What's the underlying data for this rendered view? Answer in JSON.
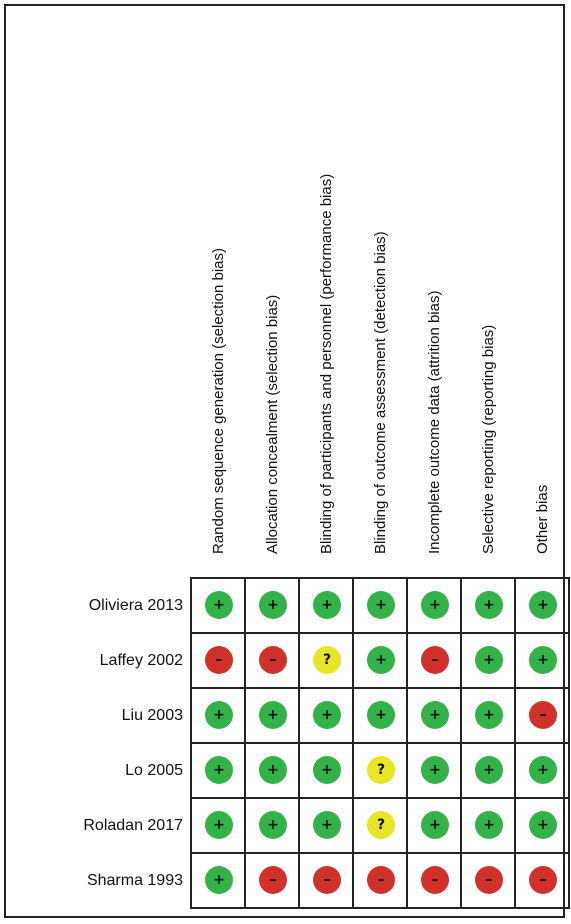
{
  "columns": [
    "Random sequence generation (selection bias)",
    "Allocation concealment (selection bias)",
    "Blinding of participants and personnel (performance bias)",
    "Blinding of outcome assessment (detection bias)",
    "Incomplete outcome data (attrition bias)",
    "Selective reporting (reporting bias)",
    "Other bias"
  ],
  "rows": [
    {
      "study": "Oliviera 2013",
      "ratings": [
        "low",
        "low",
        "low",
        "low",
        "low",
        "low",
        "low"
      ]
    },
    {
      "study": "Laffey 2002",
      "ratings": [
        "high",
        "high",
        "unclear",
        "low",
        "high",
        "low",
        "low"
      ]
    },
    {
      "study": "Liu 2003",
      "ratings": [
        "low",
        "low",
        "low",
        "low",
        "low",
        "low",
        "high"
      ]
    },
    {
      "study": "Lo 2005",
      "ratings": [
        "low",
        "low",
        "low",
        "unclear",
        "low",
        "low",
        "low"
      ]
    },
    {
      "study": "Roladan 2017",
      "ratings": [
        "low",
        "low",
        "low",
        "unclear",
        "low",
        "low",
        "low"
      ]
    },
    {
      "study": "Sharma 1993",
      "ratings": [
        "low",
        "high",
        "high",
        "high",
        "high",
        "high",
        "high"
      ]
    }
  ],
  "symbols": {
    "low": "+",
    "high": "–",
    "unclear": "?"
  },
  "colors": {
    "low": "#33b24a",
    "high": "#d0312b",
    "unclear": "#e6e626"
  }
}
